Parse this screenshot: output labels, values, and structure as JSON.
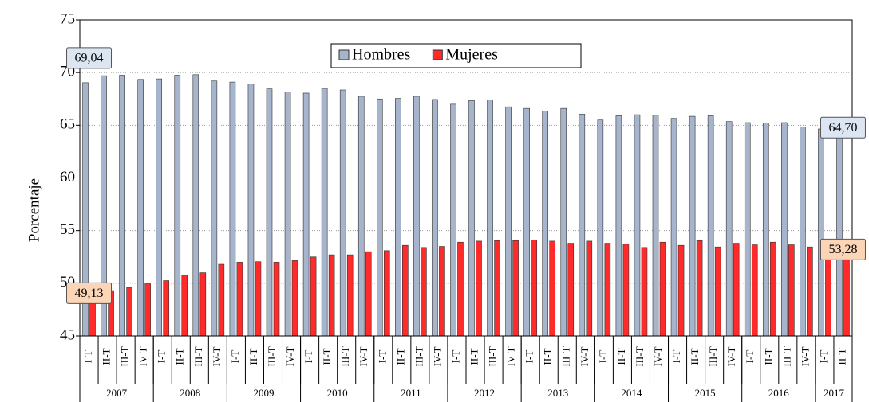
{
  "chart_data": {
    "type": "bar",
    "y_axis_label": "Porcentaje",
    "groups": [
      {
        "label": "2007",
        "categories": [
          "I-T",
          "II-T",
          "III-T",
          "IV-T"
        ]
      },
      {
        "label": "2008",
        "categories": [
          "I-T",
          "II-T",
          "III-T",
          "IV-T"
        ]
      },
      {
        "label": "2009",
        "categories": [
          "I-T",
          "II-T",
          "III-T",
          "IV-T"
        ]
      },
      {
        "label": "2010",
        "categories": [
          "I-T",
          "II-T",
          "III-T",
          "IV-T"
        ]
      },
      {
        "label": "2011",
        "categories": [
          "I-T",
          "II-T",
          "III-T",
          "IV-T"
        ]
      },
      {
        "label": "2012",
        "categories": [
          "I-T",
          "II-T",
          "III-T",
          "IV-T"
        ]
      },
      {
        "label": "2013",
        "categories": [
          "I-T",
          "II-T",
          "III-T",
          "IV-T"
        ]
      },
      {
        "label": "2014",
        "categories": [
          "I-T",
          "II-T",
          "III-T",
          "IV-T"
        ]
      },
      {
        "label": "2015",
        "categories": [
          "I-T",
          "II-T",
          "III-T",
          "IV-T"
        ]
      },
      {
        "label": "2016",
        "categories": [
          "I-T",
          "II-T",
          "III-T",
          "IV-T"
        ]
      },
      {
        "label": "2017",
        "categories": [
          "I-T",
          "II-T"
        ]
      }
    ],
    "series": [
      {
        "name": "Hombres",
        "color": "#a6b4cc",
        "values": [
          69.04,
          69.7,
          69.75,
          69.35,
          69.4,
          69.75,
          69.8,
          69.2,
          69.1,
          68.9,
          68.45,
          68.15,
          68.05,
          68.5,
          68.35,
          67.75,
          67.5,
          67.55,
          67.75,
          67.45,
          67.0,
          67.35,
          67.4,
          66.75,
          66.6,
          66.35,
          66.6,
          66.05,
          65.5,
          65.9,
          66.0,
          65.95,
          65.65,
          65.85,
          65.9,
          65.35,
          65.25,
          65.2,
          65.25,
          64.85,
          64.65,
          64.7
        ],
        "value_labels": [
          "69,04",
          null,
          null,
          null,
          null,
          null,
          null,
          null,
          null,
          null,
          null,
          null,
          null,
          null,
          null,
          null,
          null,
          null,
          null,
          null,
          null,
          null,
          null,
          null,
          null,
          null,
          null,
          null,
          null,
          null,
          null,
          null,
          null,
          null,
          null,
          null,
          null,
          null,
          null,
          null,
          null,
          "64,70"
        ],
        "label_color": "#dce6f2"
      },
      {
        "name": "Mujeres",
        "color": "#ff2a2a",
        "values": [
          49.13,
          49.3,
          49.6,
          49.95,
          50.25,
          50.75,
          51.0,
          51.8,
          52.0,
          52.05,
          52.0,
          52.15,
          52.5,
          52.7,
          52.7,
          53.0,
          53.1,
          53.6,
          53.4,
          53.5,
          53.9,
          54.0,
          54.05,
          54.05,
          54.1,
          54.0,
          53.8,
          54.0,
          53.8,
          53.7,
          53.4,
          53.9,
          53.6,
          54.05,
          53.45,
          53.8,
          53.65,
          53.9,
          53.65,
          53.45,
          53.3,
          53.28
        ],
        "value_labels": [
          "49,13",
          null,
          null,
          null,
          null,
          null,
          null,
          null,
          null,
          null,
          null,
          null,
          null,
          null,
          null,
          null,
          null,
          null,
          null,
          null,
          null,
          null,
          null,
          null,
          null,
          null,
          null,
          null,
          null,
          null,
          null,
          null,
          null,
          null,
          null,
          null,
          null,
          null,
          null,
          null,
          null,
          "53,28"
        ],
        "label_color": "#fbd5b5"
      }
    ],
    "ylim": [
      45,
      75
    ],
    "yticks": [
      45,
      50,
      55,
      60,
      65,
      70,
      75
    ],
    "grid": true,
    "legend": "top"
  }
}
